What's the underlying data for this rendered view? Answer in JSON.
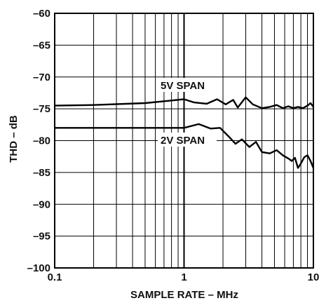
{
  "chart_data": {
    "type": "line",
    "xscale": "log",
    "xlim": [
      0.1,
      10
    ],
    "ylim": [
      -100,
      -60
    ],
    "grid": true,
    "xlabel": "SAMPLE RATE – MHz",
    "ylabel": "THD – dB",
    "xticks": [
      "0.1",
      "1",
      "10"
    ],
    "yticks": [
      "–60",
      "–65",
      "–70",
      "–75",
      "–80",
      "–85",
      "–90",
      "–95",
      "–100"
    ],
    "series": [
      {
        "name": "5V SPAN",
        "x": [
          0.1,
          0.2,
          0.5,
          0.8,
          1.0,
          1.2,
          1.5,
          1.8,
          2.1,
          2.4,
          2.6,
          3.0,
          3.4,
          4.0,
          4.6,
          5.2,
          5.8,
          6.4,
          7.0,
          7.6,
          8.3,
          9.0,
          9.5,
          10.0
        ],
        "y": [
          -74.5,
          -74.4,
          -74.1,
          -73.7,
          -73.5,
          -74.0,
          -74.2,
          -73.5,
          -74.3,
          -73.6,
          -74.8,
          -73.2,
          -74.3,
          -74.9,
          -74.7,
          -74.4,
          -74.9,
          -74.6,
          -74.9,
          -74.7,
          -74.9,
          -74.5,
          -74.1,
          -74.7
        ]
      },
      {
        "name": "2V SPAN",
        "x": [
          0.1,
          0.3,
          0.8,
          1.0,
          1.3,
          1.6,
          1.9,
          2.2,
          2.5,
          2.8,
          3.2,
          3.6,
          4.0,
          4.6,
          5.2,
          5.8,
          6.4,
          6.8,
          7.2,
          7.6,
          8.0,
          8.5,
          9.0,
          9.5,
          10.0
        ],
        "y": [
          -78.0,
          -78.0,
          -78.0,
          -78.0,
          -77.4,
          -78.1,
          -78.0,
          -79.3,
          -80.5,
          -79.8,
          -81.0,
          -80.2,
          -81.8,
          -82.0,
          -81.5,
          -82.3,
          -82.8,
          -83.2,
          -82.7,
          -84.3,
          -83.6,
          -82.6,
          -82.3,
          -83.2,
          -84.3
        ]
      }
    ]
  }
}
